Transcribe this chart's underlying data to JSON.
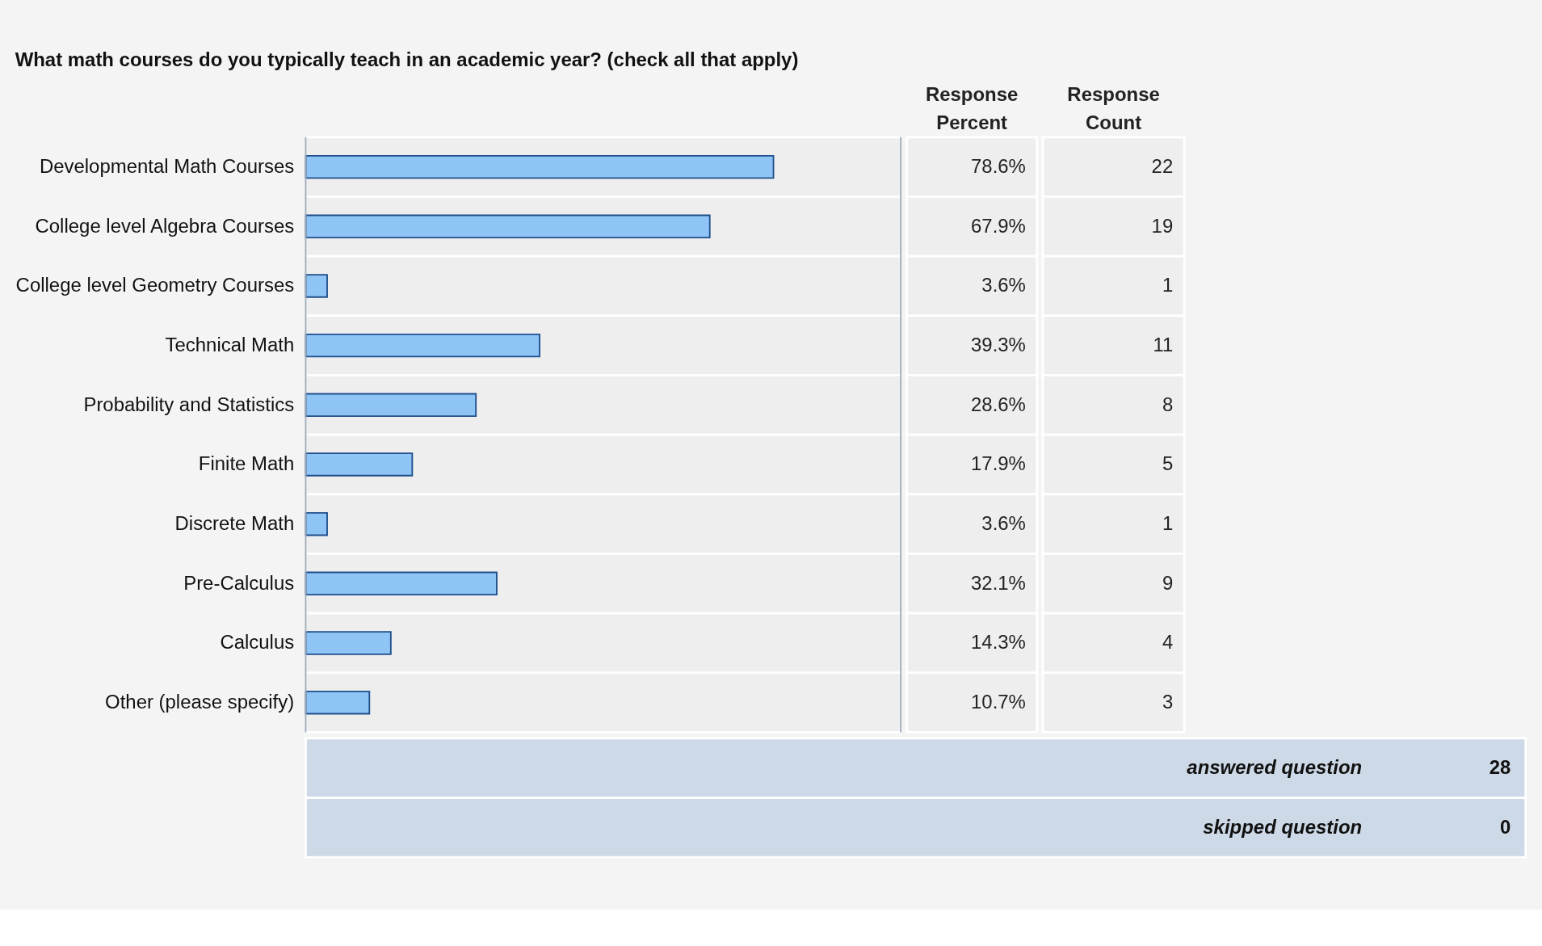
{
  "chart_data": {
    "type": "bar",
    "orientation": "horizontal",
    "title": "What math courses do you typically teach in an academic year? (check all that apply)",
    "categories": [
      "Developmental Math Courses",
      "College level Algebra Courses",
      "College level Geometry Courses",
      "Technical Math",
      "Probability and Statistics",
      "Finite Math",
      "Discrete Math",
      "Pre-Calculus",
      "Calculus",
      "Other (please specify)"
    ],
    "series": [
      {
        "name": "Response Percent",
        "color": "#8ec5f5",
        "values": [
          78.6,
          67.9,
          3.6,
          39.3,
          28.6,
          17.9,
          3.6,
          32.1,
          14.3,
          10.7
        ],
        "value_labels": [
          "78.6%",
          "67.9%",
          "3.6%",
          "39.3%",
          "28.6%",
          "17.9%",
          "3.6%",
          "32.1%",
          "14.3%",
          "10.7%"
        ]
      }
    ],
    "xlim": [
      0,
      100
    ],
    "tick_labels": "y",
    "annotations": [
      "Response Count",
      "22",
      "19",
      "1",
      "11",
      "8",
      "5",
      "1",
      "9",
      "4",
      "3",
      "answered question",
      "28",
      "skipped question",
      "0"
    ]
  }
}
